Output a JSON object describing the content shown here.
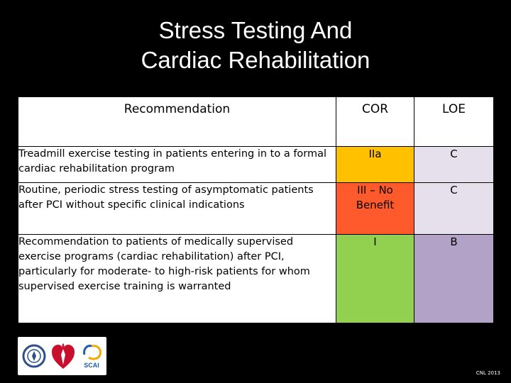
{
  "slide": {
    "title_line1": "Stress Testing And",
    "title_line2": "Cardiac Rehabilitation",
    "footnote": "CNL 2013"
  },
  "table": {
    "headers": {
      "recommendation": "Recommendation",
      "cor": "COR",
      "loe": "LOE"
    },
    "rows": [
      {
        "recommendation": "Treadmill exercise testing in patients  entering in to a formal cardiac rehabilitation program",
        "cor": "IIa",
        "loe": "C",
        "cor_color": "#ffc000",
        "loe_color": "#e6e0ec"
      },
      {
        "recommendation": "Routine, periodic stress testing of asymptomatic patients after PCI without specific clinical indications",
        "cor": "III – No Benefit",
        "loe": "C",
        "cor_color": "#ff5a2b",
        "loe_color": "#e6e0ec"
      },
      {
        "recommendation": "Recommendation to patients of medically supervised exercise programs (cardiac rehabilitation) after PCI, particularly for moderate- to high-risk patients for whom supervised exercise training is warranted",
        "cor": "I",
        "loe": "B",
        "cor_color": "#92d050",
        "loe_color": "#b3a2c7"
      }
    ]
  },
  "logos": [
    {
      "icon": "acc-seal-icon",
      "color": "#2b4f8c"
    },
    {
      "icon": "aha-heart-torch-icon",
      "color": "#c8102e"
    },
    {
      "icon": "scai-logo-icon",
      "color": "#1f5fa8",
      "text": "SCAI"
    }
  ]
}
